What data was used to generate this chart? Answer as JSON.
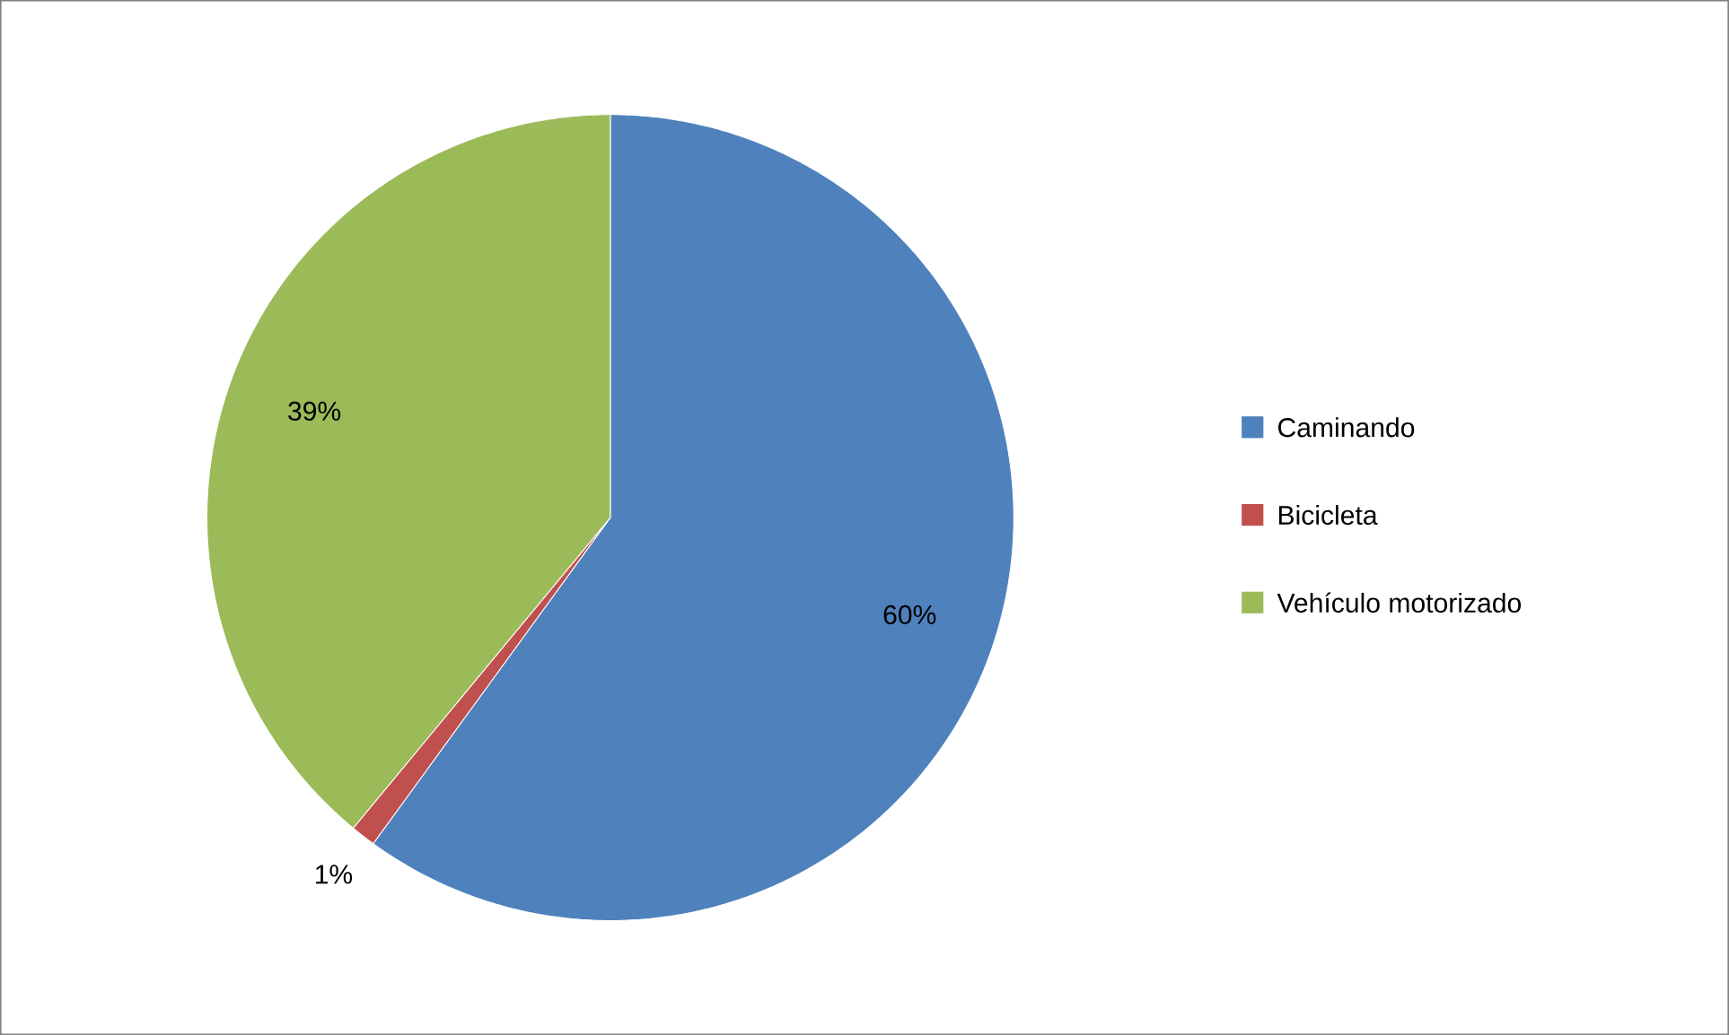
{
  "chart_data": {
    "type": "pie",
    "categories": [
      "Caminando",
      "Bicicleta",
      "Vehículo motorizado"
    ],
    "values": [
      60,
      1,
      39
    ],
    "colors": [
      "#4f81bd",
      "#c0504d",
      "#9bbb59"
    ],
    "value_labels": [
      "60%",
      "1%",
      "39%"
    ],
    "legend": "right"
  }
}
